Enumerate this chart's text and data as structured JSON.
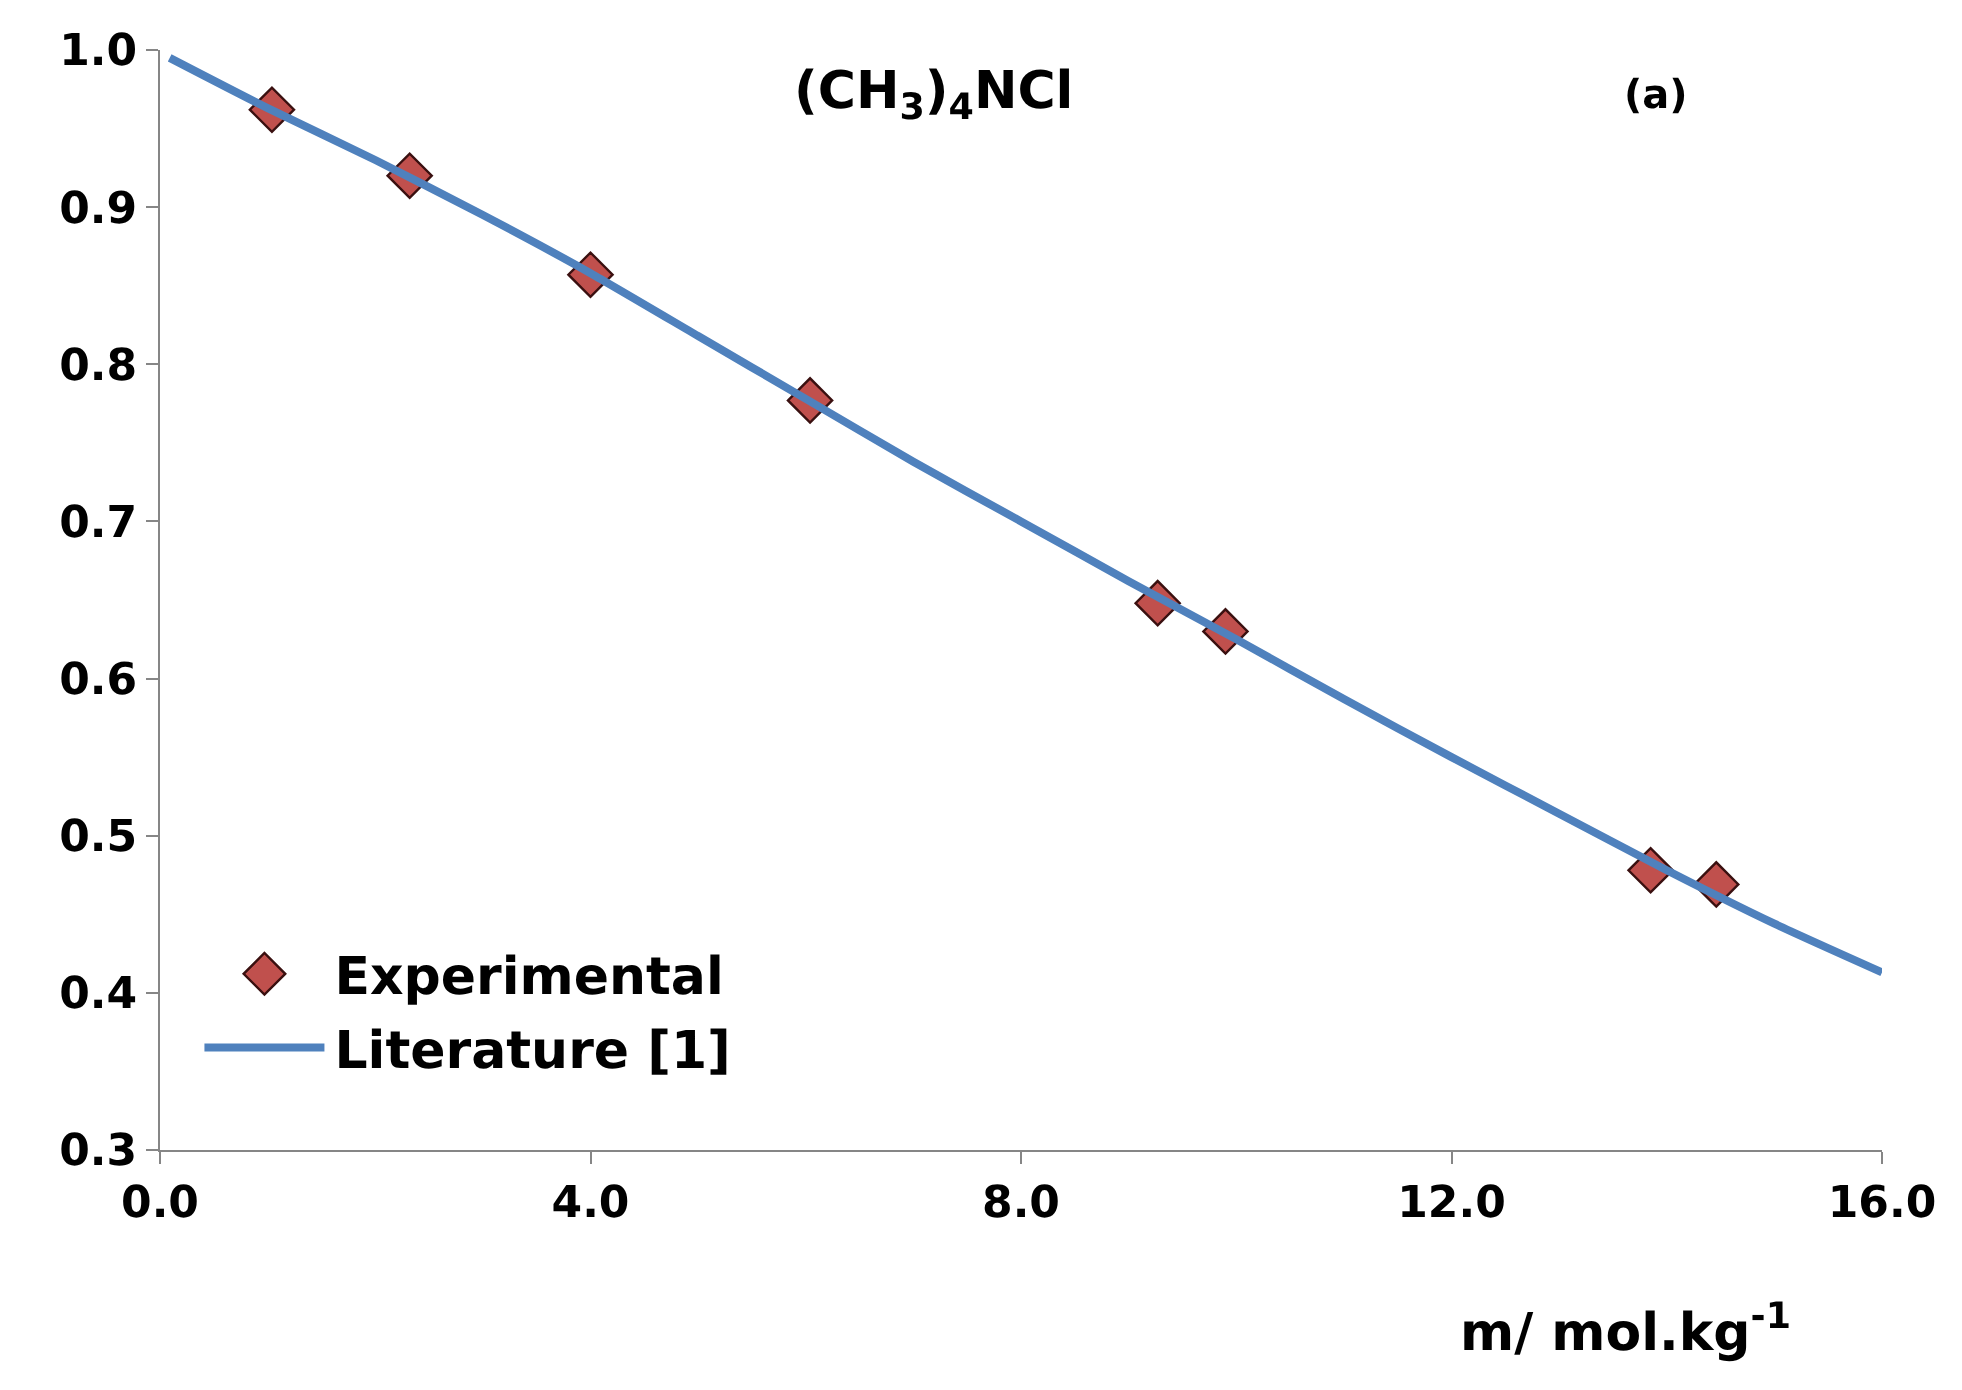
{
  "chart_data": {
    "type": "scatter",
    "xlabel": "m/ mol.kg$^{-1}$",
    "annotations": [
      "(CH$_{3}$)$_{4}$NCl",
      "(a)"
    ],
    "series": [
      {
        "name": "Experimental",
        "type": "scatter",
        "marker": "diamond",
        "color": "#c0504d",
        "x": [
          1.04,
          2.32,
          4.0,
          6.04,
          9.27,
          9.9,
          13.85,
          14.46
        ],
        "values": [
          0.962,
          0.92,
          0.857,
          0.777,
          0.648,
          0.63,
          0.478,
          0.469
        ]
      },
      {
        "name": "Literature [1]",
        "type": "line",
        "marker": "none",
        "line_style": "solid",
        "color": "#4f81bd",
        "x": [
          0.09,
          1,
          2,
          3,
          4,
          5,
          6,
          7,
          8,
          9,
          10,
          11,
          12,
          13,
          14,
          15,
          16
        ],
        "values": [
          0.995,
          0.963,
          0.93,
          0.895,
          0.858,
          0.818,
          0.778,
          0.738,
          0.7,
          0.662,
          0.625,
          0.587,
          0.55,
          0.514,
          0.478,
          0.444,
          0.413
        ]
      }
    ],
    "xlim": [
      0,
      16
    ],
    "xticks": [
      {
        "value": 0,
        "label": "0.0"
      },
      {
        "value": 4,
        "label": "4.0"
      },
      {
        "value": 8,
        "label": "8.0"
      },
      {
        "value": 12,
        "label": "12.0"
      },
      {
        "value": 16,
        "label": "16.0"
      }
    ],
    "ylim": [
      0.3,
      1.0
    ],
    "yticks": [
      {
        "value": 0.3,
        "label": "0.3"
      },
      {
        "value": 0.4,
        "label": "0.4"
      },
      {
        "value": 0.5,
        "label": "0.5"
      },
      {
        "value": 0.6,
        "label": "0.6"
      },
      {
        "value": 0.7,
        "label": "0.7"
      },
      {
        "value": 0.8,
        "label": "0.8"
      },
      {
        "value": 0.9,
        "label": "0.9"
      },
      {
        "value": 1.0,
        "label": "1.0"
      }
    ],
    "legend": "bottom left"
  }
}
